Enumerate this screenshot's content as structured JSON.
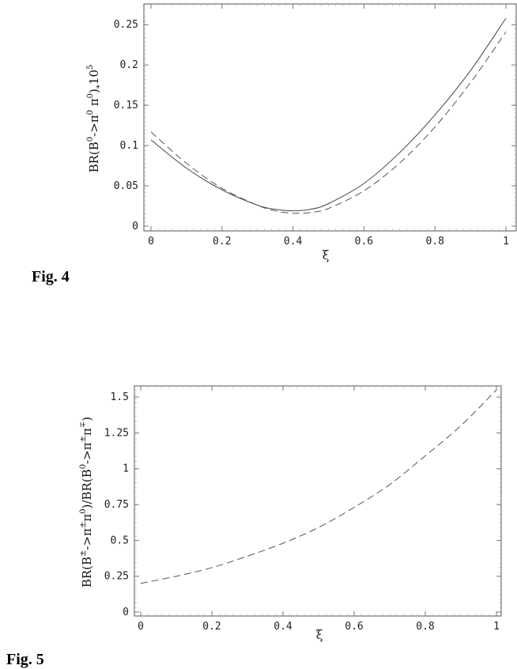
{
  "chart_data": [
    {
      "type": "line",
      "caption": "Fig. 4",
      "xlabel": "ξ",
      "ylabel": "BR(B0->π0 π0)*10^5",
      "xlim": [
        0,
        1
      ],
      "ylim": [
        0,
        0.26
      ],
      "x_ticks": [
        "0",
        "0.2",
        "0.4",
        "0.6",
        "0.8",
        "1"
      ],
      "y_ticks": [
        "0",
        "0.05",
        "0.1",
        "0.15",
        "0.2",
        "0.25"
      ],
      "grid": false,
      "series": [
        {
          "style": "solid",
          "x": [
            0,
            0.1,
            0.2,
            0.3,
            0.35,
            0.4,
            0.45,
            0.5,
            0.6,
            0.7,
            0.8,
            0.9,
            1.0
          ],
          "y": [
            0.107,
            0.072,
            0.045,
            0.026,
            0.021,
            0.019,
            0.021,
            0.028,
            0.053,
            0.091,
            0.138,
            0.193,
            0.258
          ]
        },
        {
          "style": "dashed",
          "x": [
            0,
            0.1,
            0.2,
            0.3,
            0.35,
            0.4,
            0.45,
            0.5,
            0.6,
            0.7,
            0.8,
            0.9,
            1.0
          ],
          "y": [
            0.117,
            0.078,
            0.047,
            0.026,
            0.019,
            0.016,
            0.017,
            0.022,
            0.044,
            0.078,
            0.123,
            0.178,
            0.241
          ]
        }
      ]
    },
    {
      "type": "line",
      "caption": "Fig. 5",
      "xlabel": "ξ",
      "ylabel": "BR(B±->π±π0)/BR(B0->π±π∓)",
      "xlim": [
        0,
        1
      ],
      "ylim": [
        0,
        1.55
      ],
      "x_ticks": [
        "0",
        "0.2",
        "0.4",
        "0.6",
        "0.8",
        "1"
      ],
      "y_ticks": [
        "0",
        "0.25",
        "0.5",
        "0.75",
        "1",
        "1.25",
        "1.5"
      ],
      "grid": false,
      "series": [
        {
          "style": "dashed",
          "x": [
            0,
            0.1,
            0.2,
            0.3,
            0.4,
            0.5,
            0.6,
            0.7,
            0.8,
            0.9,
            1.0
          ],
          "y": [
            0.2,
            0.25,
            0.31,
            0.39,
            0.48,
            0.59,
            0.73,
            0.89,
            1.09,
            1.3,
            1.55
          ]
        }
      ]
    }
  ]
}
